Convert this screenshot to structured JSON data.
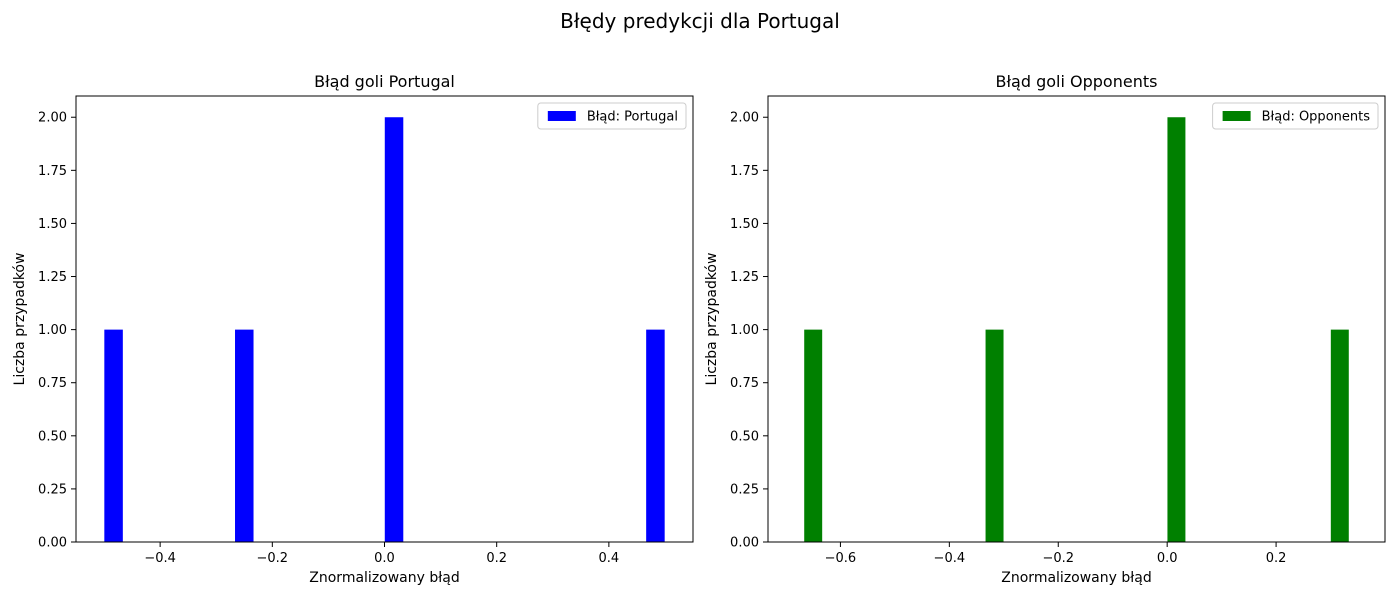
{
  "figure": {
    "suptitle": "Błędy predykcji dla Portugal"
  },
  "chart_data": [
    {
      "type": "bar",
      "title": "Błąd goli Portugal",
      "xlabel": "Znormalizowany błąd",
      "ylabel": "Liczba przypadków",
      "xlim": [
        -0.55,
        0.55
      ],
      "ylim": [
        0,
        2.1
      ],
      "xticks": [
        -0.4,
        -0.2,
        0.0,
        0.2,
        0.4
      ],
      "xtick_labels": [
        "−0.4",
        "−0.2",
        "0.0",
        "0.2",
        "0.4"
      ],
      "yticks": [
        0,
        0.25,
        0.5,
        0.75,
        1.0,
        1.25,
        1.5,
        1.75,
        2.0
      ],
      "ytick_labels": [
        "0.00",
        "0.25",
        "0.50",
        "0.75",
        "1.00",
        "1.25",
        "1.50",
        "1.75",
        "2.00"
      ],
      "bar_width": 0.033,
      "x": [
        -0.483,
        -0.25,
        0.017,
        0.483
      ],
      "values": [
        1,
        1,
        2,
        1
      ],
      "series": [
        {
          "name": "Błąd: Portugal",
          "color": "#0000ff"
        }
      ],
      "legend": "upper right",
      "grid": false
    },
    {
      "type": "bar",
      "title": "Błąd goli Opponents",
      "xlabel": "Znormalizowany błąd",
      "ylabel": "Liczba przypadków",
      "xlim": [
        -0.733,
        0.4
      ],
      "ylim": [
        0,
        2.1
      ],
      "xticks": [
        -0.6,
        -0.4,
        -0.2,
        0.0,
        0.2
      ],
      "xtick_labels": [
        "−0.6",
        "−0.4",
        "−0.2",
        "0.0",
        "0.2"
      ],
      "yticks": [
        0,
        0.25,
        0.5,
        0.75,
        1.0,
        1.25,
        1.5,
        1.75,
        2.0
      ],
      "ytick_labels": [
        "0.00",
        "0.25",
        "0.50",
        "0.75",
        "1.00",
        "1.25",
        "1.50",
        "1.75",
        "2.00"
      ],
      "bar_width": 0.033,
      "x": [
        -0.65,
        -0.317,
        0.017,
        0.317
      ],
      "values": [
        1,
        1,
        2,
        1
      ],
      "series": [
        {
          "name": "Błąd: Opponents",
          "color": "#008000"
        }
      ],
      "legend": "upper right",
      "grid": false
    }
  ]
}
